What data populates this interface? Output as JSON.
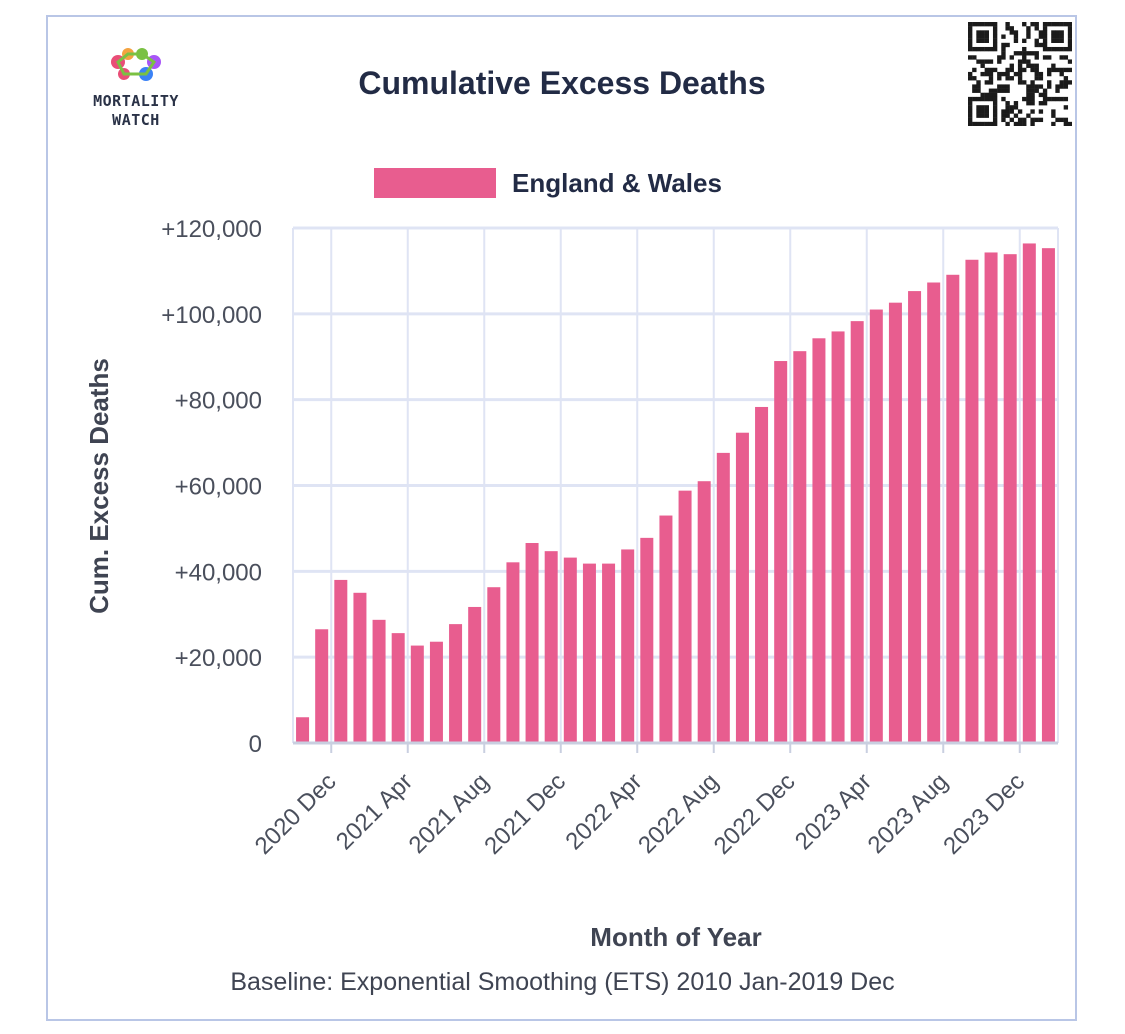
{
  "logo": {
    "name_line1": "MORTALITY",
    "name_line2": "WATCH",
    "colors": [
      "#e94e77",
      "#f4a340",
      "#7ac143",
      "#3b82f6",
      "#a855f7"
    ]
  },
  "qr_code": {
    "icon": "qr-code-icon"
  },
  "colors": {
    "bar": "#e85d8f",
    "grid": "#dfe4f4",
    "frame": "#b9c6e6",
    "text": "#222b45"
  },
  "chart_data": {
    "type": "bar",
    "title": "Cumulative Excess Deaths",
    "xlabel": "Month of Year",
    "ylabel": "Cum. Excess Deaths",
    "footer": "Baseline: Exponential Smoothing (ETS) 2010 Jan-2019 Dec",
    "legend": {
      "position": "top-center"
    },
    "grid": true,
    "ylim": [
      0,
      120000
    ],
    "yticks": [
      0,
      20000,
      40000,
      60000,
      80000,
      100000,
      120000
    ],
    "ytick_labels": [
      "0",
      "+20,000",
      "+40,000",
      "+60,000",
      "+80,000",
      "+100,000",
      "+120,000"
    ],
    "xtick_labels": [
      "2020 Dec",
      "2021 Apr",
      "2021 Aug",
      "2021 Dec",
      "2022 Apr",
      "2022 Aug",
      "2022 Dec",
      "2023 Apr",
      "2023 Aug",
      "2023 Dec"
    ],
    "categories": [
      "2020 Nov",
      "2020 Dec",
      "2021 Jan",
      "2021 Feb",
      "2021 Mar",
      "2021 Apr",
      "2021 May",
      "2021 Jun",
      "2021 Jul",
      "2021 Aug",
      "2021 Sep",
      "2021 Oct",
      "2021 Nov",
      "2021 Dec",
      "2022 Jan",
      "2022 Feb",
      "2022 Mar",
      "2022 Apr",
      "2022 May",
      "2022 Jun",
      "2022 Jul",
      "2022 Aug",
      "2022 Sep",
      "2022 Oct",
      "2022 Nov",
      "2022 Dec",
      "2023 Jan",
      "2023 Feb",
      "2023 Mar",
      "2023 Apr",
      "2023 May",
      "2023 Jun",
      "2023 Jul",
      "2023 Aug",
      "2023 Sep",
      "2023 Oct",
      "2023 Nov",
      "2023 Dec",
      "2024 Jan",
      "2024 Feb"
    ],
    "series": [
      {
        "name": "England & Wales",
        "color": "#e85d8f",
        "values": [
          6000,
          26500,
          38000,
          35000,
          28700,
          25600,
          22700,
          23600,
          27700,
          31700,
          36300,
          42100,
          46600,
          44700,
          43200,
          41800,
          41800,
          45100,
          47800,
          53000,
          58800,
          61000,
          67600,
          72300,
          78300,
          89000,
          91300,
          94300,
          95900,
          98300,
          101000,
          102600,
          105300,
          107300,
          109100,
          112600,
          114300,
          113900,
          116400,
          115300
        ]
      }
    ]
  }
}
